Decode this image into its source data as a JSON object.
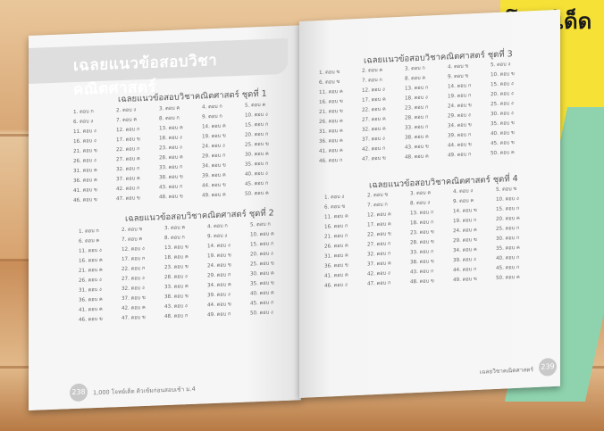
{
  "cover": {
    "text": "โจทย์เด็ด",
    "yellow": "#f6e136",
    "green": "#8fd3ae"
  },
  "answer_word": "ตอบ",
  "left_page": {
    "heading": "เฉลยแนวข้อสอบวิชาคณิตศาสตร์",
    "page_number": "238",
    "footer": "1,000 โจทย์เด็ด ติวเข้มก่อนสอบเข้า ม.4"
  },
  "right_page": {
    "page_number": "239",
    "footer": "เฉลยวิชาคณิตศาสตร์"
  },
  "sets": [
    {
      "title": "เฉลยแนวข้อสอบวิชาคณิตศาสตร์ ชุดที่ 1",
      "answers": [
        "ก",
        "ง",
        "ค",
        "ก",
        "ค",
        "ง",
        "ค",
        "ก",
        "ก",
        "ง",
        "ง",
        "ก",
        "ค",
        "ค",
        "ก",
        "ง",
        "ข",
        "ง",
        "ข",
        "ก",
        "ข",
        "ก",
        "ง",
        "ง",
        "ข",
        "ง",
        "ค",
        "ค",
        "ก",
        "ค",
        "ค",
        "ก",
        "ก",
        "ข",
        "ก",
        "ค",
        "ค",
        "ข",
        "ค",
        "ง",
        "ข",
        "ก",
        "ก",
        "ข",
        "ก",
        "ข",
        "ข",
        "ข",
        "ค",
        "ค"
      ]
    },
    {
      "title": "เฉลยแนวข้อสอบวิชาคณิตศาสตร์ ชุดที่ 2",
      "answers": [
        "ก",
        "ข",
        "ค",
        "ก",
        "ก",
        "ค",
        "ค",
        "ก",
        "ง",
        "ค",
        "ง",
        "ง",
        "ข",
        "ง",
        "ก",
        "ค",
        "ก",
        "ค",
        "ข",
        "ง",
        "ค",
        "ก",
        "ข",
        "ข",
        "ข",
        "ง",
        "ง",
        "ง",
        "ก",
        "ค",
        "ง",
        "ง",
        "ค",
        "ค",
        "ข",
        "ค",
        "ข",
        "ข",
        "ง",
        "ค",
        "ค",
        "ค",
        "ง",
        "ข",
        "ก",
        "ข",
        "ข",
        "ก",
        "ก",
        "ง"
      ]
    },
    {
      "title": "เฉลยแนวข้อสอบวิชาคณิตศาสตร์ ชุดที่ 3",
      "answers": [
        "ข",
        "ค",
        "ก",
        "ข",
        "ง",
        "ข",
        "ก",
        "ค",
        "ข",
        "ข",
        "ค",
        "ง",
        "ก",
        "ก",
        "ง",
        "ข",
        "ค",
        "ง",
        "ก",
        "ง",
        "ข",
        "ค",
        "ก",
        "ข",
        "ง",
        "ค",
        "ค",
        "ก",
        "ง",
        "ง",
        "ค",
        "ค",
        "ก",
        "ข",
        "ข",
        "ค",
        "ง",
        "ค",
        "ก",
        "ข",
        "ค",
        "ก",
        "ข",
        "ข",
        "ข",
        "ก",
        "ข",
        "ค",
        "ก",
        "ค"
      ]
    },
    {
      "title": "เฉลยแนวข้อสอบวิชาคณิตศาสตร์ ชุดที่ 4",
      "answers": [
        "ง",
        "ข",
        "ค",
        "ง",
        "ข",
        "ข",
        "ก",
        "ง",
        "ค",
        "ง",
        "ค",
        "ค",
        "ก",
        "ข",
        "ก",
        "ก",
        "ค",
        "ก",
        "ก",
        "ค",
        "ก",
        "ข",
        "ข",
        "ค",
        "ก",
        "ค",
        "ก",
        "ข",
        "ข",
        "ก",
        "ค",
        "ก",
        "ก",
        "ค",
        "ค",
        "ข",
        "ค",
        "ข",
        "ง",
        "ก",
        "ค",
        "ง",
        "ก",
        "ก",
        "ก",
        "ง",
        "ก",
        "ข",
        "ข",
        "ค"
      ]
    }
  ]
}
